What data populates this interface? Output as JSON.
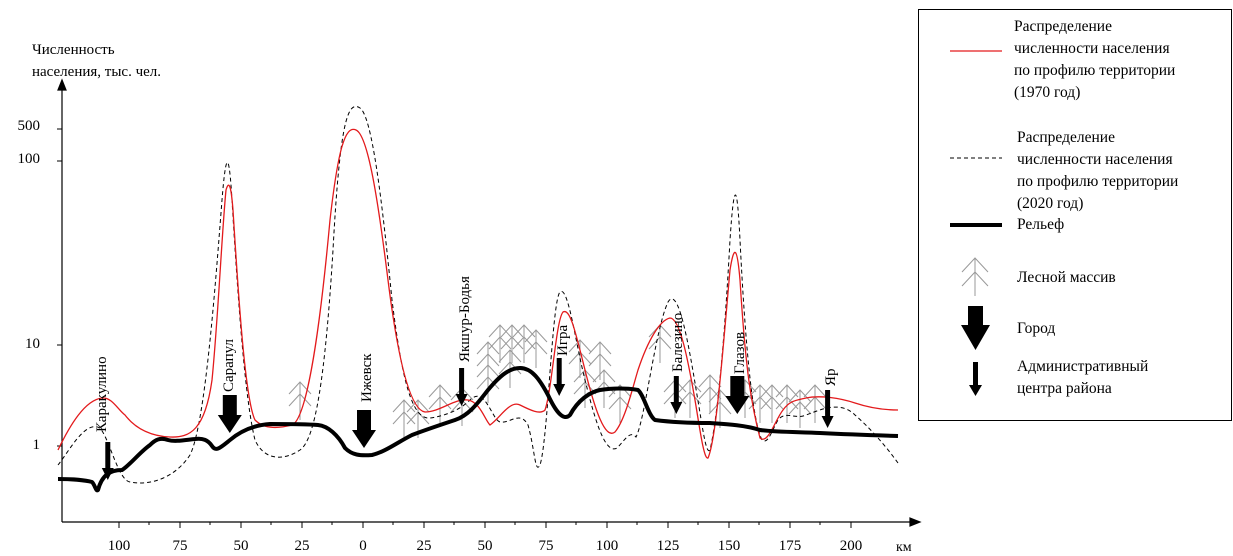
{
  "axis": {
    "y_label_line1": "Численность",
    "y_label_line2": "населения, тыс. чел.",
    "y_ticks": [
      {
        "label": "500",
        "value": 500
      },
      {
        "label": "100",
        "value": 100
      },
      {
        "label": "10",
        "value": 10
      },
      {
        "label": "1",
        "value": 1
      }
    ],
    "x_ticks": [
      "100",
      "75",
      "50",
      "25",
      "0",
      "25",
      "50",
      "75",
      "100",
      "125",
      "150",
      "175",
      "200"
    ],
    "x_unit": "км"
  },
  "cities": [
    {
      "name": "Каракулино",
      "km": -105,
      "type": "admin"
    },
    {
      "name": "Сарапул",
      "km": -55,
      "type": "city"
    },
    {
      "name": "Ижевск",
      "km": 0,
      "type": "city"
    },
    {
      "name": "Якшур-Бодья",
      "km": 40,
      "type": "admin"
    },
    {
      "name": "Игра",
      "km": 80,
      "type": "admin"
    },
    {
      "name": "Балезино",
      "km": 128,
      "type": "admin"
    },
    {
      "name": "Глазов",
      "km": 153,
      "type": "city"
    },
    {
      "name": "Яр",
      "km": 190,
      "type": "admin"
    }
  ],
  "legend": {
    "pop1970": [
      "Распределение",
      "численности населения",
      "по профилю территории",
      "(1970 год)"
    ],
    "pop2020": [
      "Распределение",
      "численности населения",
      "по профилю территории",
      "(2020 год)"
    ],
    "relief": "Рельеф",
    "forest": "Лесной массив",
    "city": "Город",
    "admin": [
      "Административный",
      "центра района"
    ]
  },
  "colors": {
    "pop1970": "#e31a1c",
    "pop2020": "#000000",
    "relief": "#000000",
    "forest": "#999999"
  }
}
